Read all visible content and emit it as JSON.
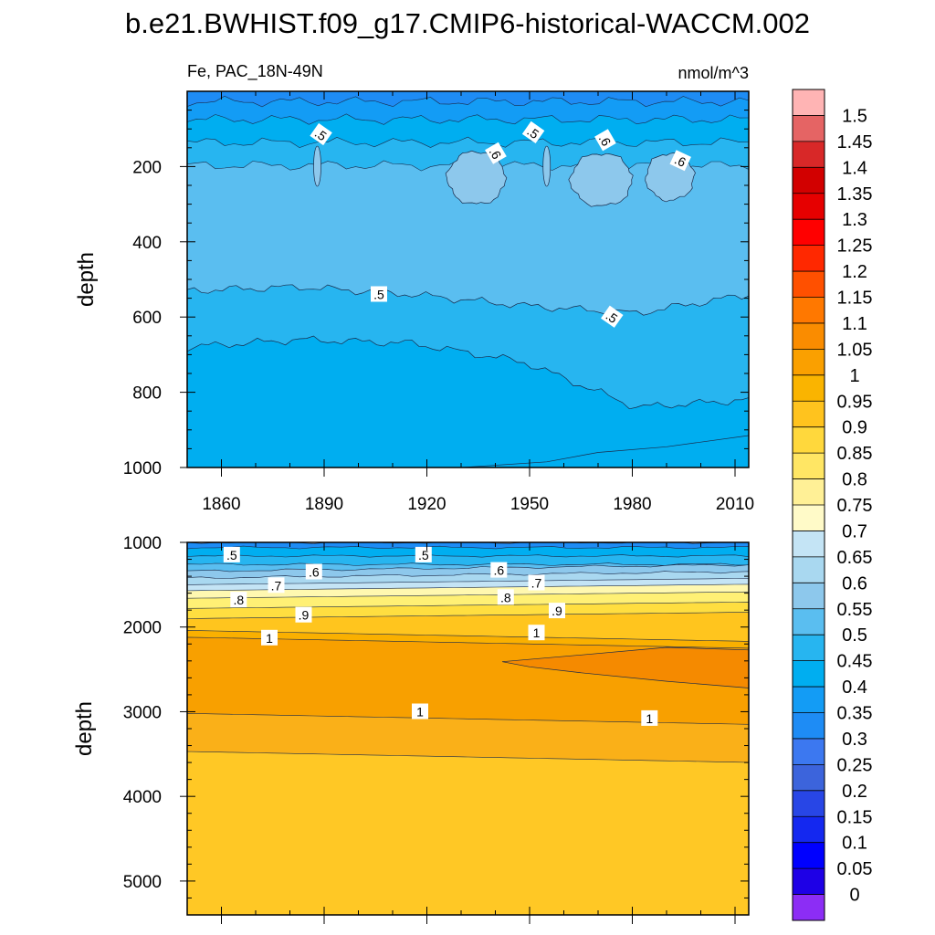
{
  "title": "b.e21.BWHIST.f09_g17.CMIP6-historical-WACCM.002",
  "chart_data": [
    {
      "type": "heatmap",
      "panel": "upper",
      "variable_label": "Fe, PAC_18N-49N",
      "units": "nmol/m^3",
      "xlabel": "",
      "ylabel": "depth",
      "xlim": [
        1850,
        2014
      ],
      "ylim": [
        0,
        1000
      ],
      "y_inverted": true,
      "xticks": [
        1860,
        1890,
        1920,
        1950,
        1980,
        2010
      ],
      "yticks": [
        200,
        400,
        600,
        800,
        1000
      ],
      "bands": [
        {
          "color": "#5ABEF0",
          "profile": [
            [
              0,
              0.37
            ],
            [
              0.15,
              0.33
            ],
            [
              0.35,
              0.36
            ],
            [
              0.55,
              0.4
            ],
            [
              0.75,
              0.38
            ],
            [
              1,
              0.37
            ]
          ],
          "desc": "0.55-0.6 layer"
        },
        {
          "color": "#27B5F0",
          "profile": [
            [
              0,
              0.53
            ],
            [
              0.2,
              0.52
            ],
            [
              0.4,
              0.54
            ],
            [
              0.6,
              0.57
            ],
            [
              0.8,
              0.59
            ],
            [
              1,
              0.54
            ]
          ],
          "desc": "0.5-0.55 layer"
        },
        {
          "color": "#00AEF0",
          "profile": [
            [
              0,
              0.68
            ],
            [
              0.2,
              0.66
            ],
            [
              0.4,
              0.67
            ],
            [
              0.6,
              0.72
            ],
            [
              0.8,
              0.84
            ],
            [
              1,
              0.82
            ]
          ],
          "desc": "0.45-0.5 layer"
        },
        {
          "color": "#139CF5",
          "profile": [
            [
              0,
              1.01
            ],
            [
              0.5,
              1.01
            ],
            [
              1,
              1.01
            ]
          ],
          "desc": "0.4-0.45 deep"
        }
      ],
      "patches": [
        {
          "color": "#8DC8EC",
          "x": [
            1926,
            1943
          ],
          "y": [
            160,
            300
          ]
        },
        {
          "color": "#8DC8EC",
          "x": [
            1962,
            1980
          ],
          "y": [
            165,
            305
          ]
        },
        {
          "color": "#8DC8EC",
          "x": [
            1984,
            1998
          ],
          "y": [
            165,
            290
          ]
        }
      ],
      "deep_patch": {
        "color": "#00AEF0",
        "profile": [
          [
            1930,
            1000
          ],
          [
            1955,
            985
          ],
          [
            1970,
            960
          ],
          [
            1990,
            945
          ],
          [
            2014,
            915
          ],
          [
            2014,
            1000
          ]
        ]
      },
      "surface_color": "#1E8CF5",
      "contour_labels": [
        {
          "text": ".5",
          "x": 1889,
          "y": 115,
          "rot": 35
        },
        {
          "text": ".5",
          "x": 1951,
          "y": 110,
          "rot": 35
        },
        {
          "text": ".6",
          "x": 1940,
          "y": 165,
          "rot": 60
        },
        {
          "text": ".6",
          "x": 1972,
          "y": 130,
          "rot": 60
        },
        {
          "text": ".6",
          "x": 1994,
          "y": 185,
          "rot": 25
        },
        {
          "text": ".5",
          "x": 1906,
          "y": 540,
          "rot": 0
        },
        {
          "text": ".5",
          "x": 1974,
          "y": 600,
          "rot": 35
        }
      ]
    },
    {
      "type": "heatmap",
      "panel": "lower",
      "xlabel": "",
      "ylabel": "depth",
      "xlim": [
        1850,
        2014
      ],
      "ylim": [
        1000,
        5400
      ],
      "y_inverted": true,
      "yticks": [
        1000,
        2000,
        3000,
        4000,
        5000
      ],
      "layers": [
        {
          "color": "#1E8CF5",
          "top": 1000,
          "bottom": 1060
        },
        {
          "color": "#00AEF0",
          "top": 1060,
          "bottom": 1160
        },
        {
          "color": "#27B5F0",
          "top": 1160,
          "bottom": 1260
        },
        {
          "color": "#5ABEF0",
          "top": 1260,
          "bottom": 1340
        },
        {
          "color": "#8DC8EC",
          "top": 1340,
          "bottom": 1420
        },
        {
          "color": "#A9D8F0",
          "top": 1420,
          "bottom": 1500
        },
        {
          "color": "#C4E4F5",
          "top": 1500,
          "bottom": 1570
        },
        {
          "color": "#FFF8B0",
          "top": 1570,
          "bottom": 1660
        },
        {
          "color": "#FFF075",
          "top": 1660,
          "bottom": 1780
        },
        {
          "color": "#FFDE40",
          "top": 1780,
          "bottom": 1900
        },
        {
          "color": "#FFC51E",
          "top": 1900,
          "bottom": 2040
        },
        {
          "color": "#FAB000",
          "top": 2040,
          "bottom": 2120
        },
        {
          "color": "#F8A000",
          "top": 2120,
          "bottom": 3020
        },
        {
          "color": "#FAB018",
          "top": 3020,
          "bottom": 3470
        },
        {
          "color": "#FFC825",
          "top": 3470,
          "bottom": 5400
        }
      ],
      "wedge": {
        "color": "#F58A00",
        "points": [
          [
            1942,
            2410
          ],
          [
            1965,
            2330
          ],
          [
            1990,
            2240
          ],
          [
            2014,
            2270
          ],
          [
            2014,
            2720
          ],
          [
            1990,
            2640
          ],
          [
            1965,
            2540
          ],
          [
            1950,
            2470
          ]
        ]
      },
      "contour_labels": [
        {
          "text": ".5",
          "x": 1863,
          "y": 1150
        },
        {
          "text": ".5",
          "x": 1919,
          "y": 1150
        },
        {
          "text": ".6",
          "x": 1887,
          "y": 1350
        },
        {
          "text": ".6",
          "x": 1941,
          "y": 1330
        },
        {
          "text": ".7",
          "x": 1876,
          "y": 1510
        },
        {
          "text": ".7",
          "x": 1952,
          "y": 1480
        },
        {
          "text": ".8",
          "x": 1865,
          "y": 1680
        },
        {
          "text": ".8",
          "x": 1943,
          "y": 1650
        },
        {
          "text": ".9",
          "x": 1884,
          "y": 1860
        },
        {
          "text": ".9",
          "x": 1958,
          "y": 1810
        },
        {
          "text": "1",
          "x": 1874,
          "y": 2130
        },
        {
          "text": "1",
          "x": 1952,
          "y": 2070
        },
        {
          "text": "1",
          "x": 1918,
          "y": 3000
        },
        {
          "text": "1",
          "x": 1985,
          "y": 3080
        }
      ]
    }
  ],
  "colorbar": {
    "levels": [
      "1.5",
      "1.45",
      "1.4",
      "1.35",
      "1.3",
      "1.25",
      "1.2",
      "1.15",
      "1.1",
      "1.05",
      "1",
      "0.95",
      "0.9",
      "0.85",
      "0.8",
      "0.75",
      "0.7",
      "0.65",
      "0.6",
      "0.55",
      "0.5",
      "0.45",
      "0.4",
      "0.35",
      "0.3",
      "0.25",
      "0.2",
      "0.15",
      "0.1",
      "0.05",
      "0"
    ],
    "colors": [
      "#FFB4B4",
      "#E56464",
      "#D82828",
      "#D20000",
      "#E60000",
      "#FF0000",
      "#FF2800",
      "#FF5000",
      "#FF7800",
      "#FA8C00",
      "#FAA000",
      "#FAB400",
      "#FFC31E",
      "#FFD83C",
      "#FFE664",
      "#FFF096",
      "#FFFAC8",
      "#C4E4F5",
      "#A9D8F0",
      "#8DC8EC",
      "#5ABEF0",
      "#27B5F0",
      "#00AEF0",
      "#139CF5",
      "#1E8CF5",
      "#3C78F0",
      "#3C64DC",
      "#2846E6",
      "#1428F0",
      "#0000FF",
      "#1E00E6",
      "#8C2DF5"
    ]
  }
}
